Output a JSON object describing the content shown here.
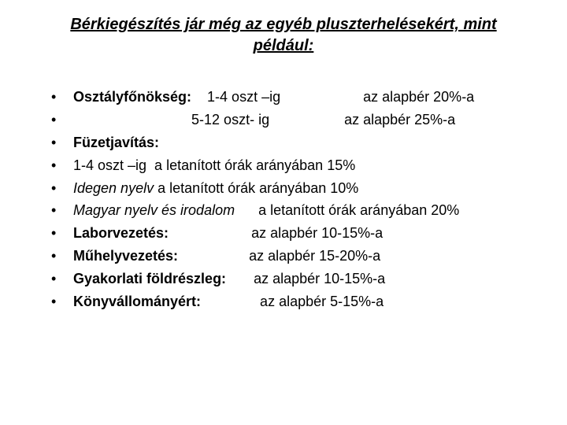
{
  "title": "Bérkiegészítés jár még az egyéb pluszterhelésekért, mint például:",
  "lines": [
    {
      "segments": [
        {
          "text": "Osztályfőnökség:",
          "bold": true
        },
        {
          "text": "    1-4 oszt –ig                     az alapbér 20%-a"
        }
      ]
    },
    {
      "segments": [
        {
          "text": "                              5-12 oszt- ig                   az alapbér 25%-a"
        }
      ]
    },
    {
      "segments": [
        {
          "text": "Füzetjavítás:",
          "bold": true
        }
      ]
    },
    {
      "segments": [
        {
          "text": "1-4 oszt –ig  a letanított órák arányában 15%"
        }
      ]
    },
    {
      "segments": [
        {
          "text": "Idegen nyelv",
          "italic": true
        },
        {
          "text": " a letanított órák arányában 10%"
        }
      ]
    },
    {
      "segments": [
        {
          "text": "Magyar nyelv és irodalom",
          "italic": true
        },
        {
          "text": "      a letanított órák arányában 20%"
        }
      ]
    },
    {
      "segments": [
        {
          "text": "Laborvezetés:",
          "bold": true
        },
        {
          "text": "                     az alapbér 10-15%-a"
        }
      ]
    },
    {
      "segments": [
        {
          "text": "Műhelyvezetés:",
          "bold": true
        },
        {
          "text": "                  az alapbér 15-20%-a"
        }
      ]
    },
    {
      "segments": [
        {
          "text": "Gyakorlati földrészleg:",
          "bold": true
        },
        {
          "text": "       az alapbér 10-15%-a"
        }
      ]
    },
    {
      "segments": [
        {
          "text": "Könyvállományért:",
          "bold": true
        },
        {
          "text": "               az alapbér 5-15%-a"
        }
      ]
    }
  ],
  "styling": {
    "background_color": "#ffffff",
    "text_color": "#000000",
    "title_fontsize": 20,
    "body_fontsize": 18,
    "font_family": "Arial"
  }
}
